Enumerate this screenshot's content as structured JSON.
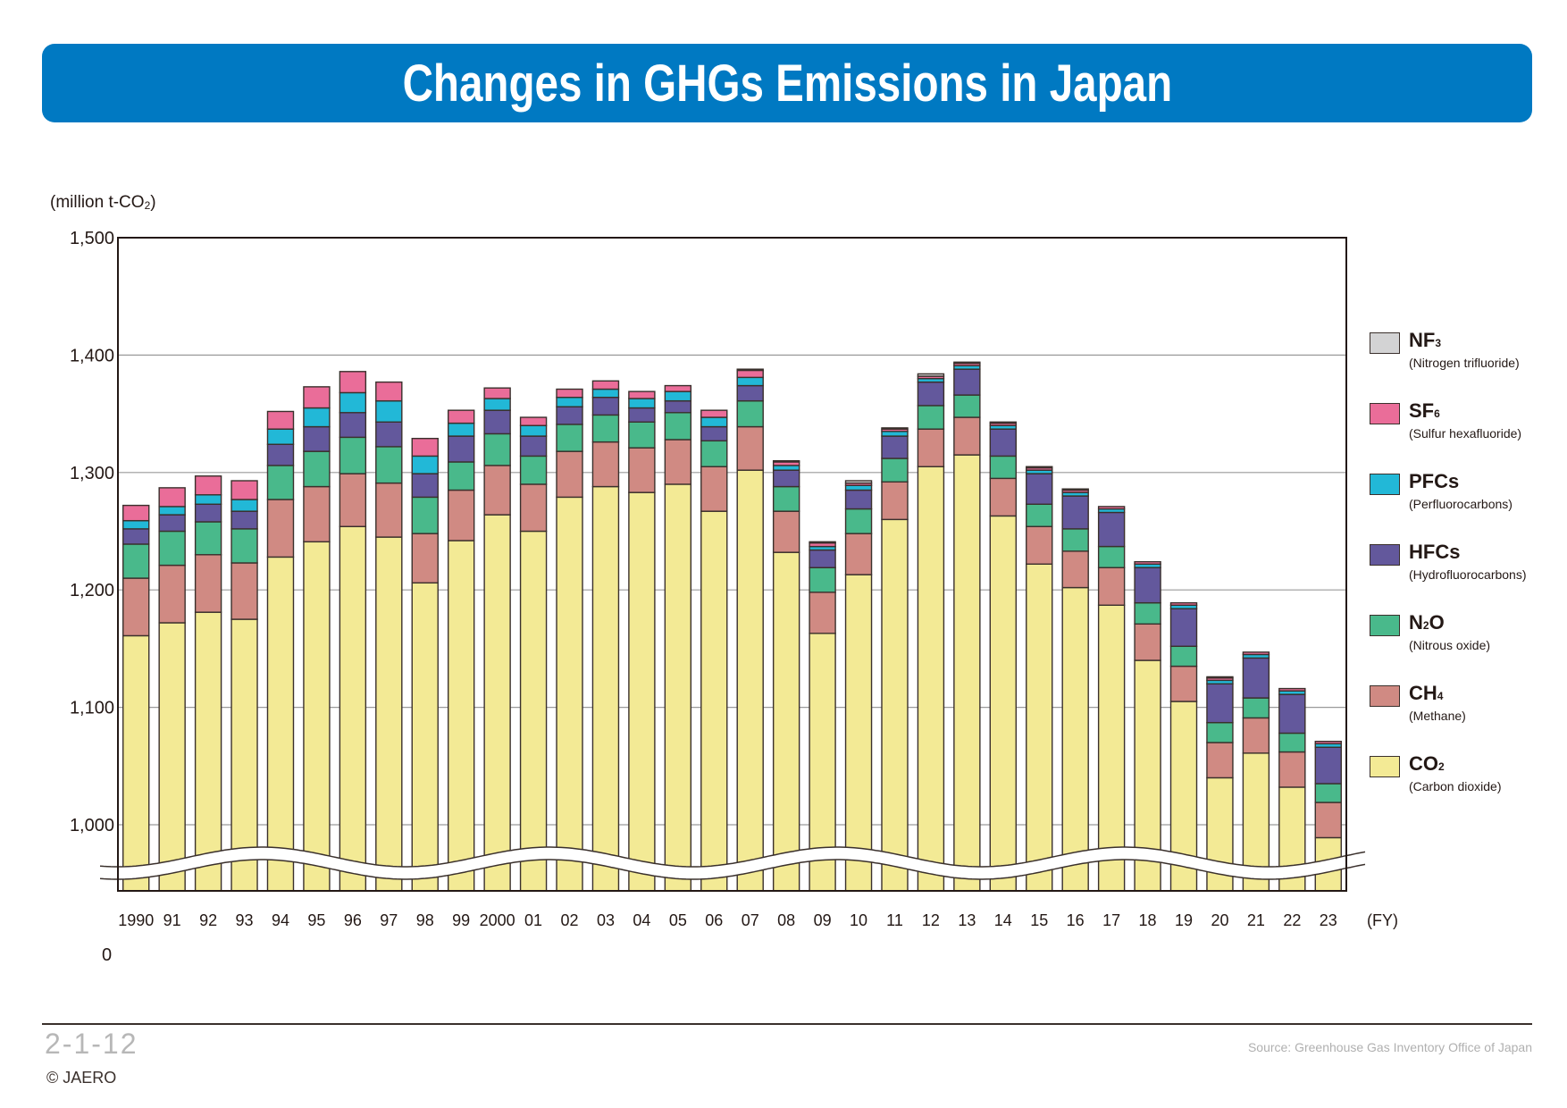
{
  "header": {
    "title": "Changes in GHGs Emissions in Japan"
  },
  "footer": {
    "code": "2-1-12",
    "copyright": "© JAERO",
    "source": "Source: Greenhouse Gas Inventory Office of Japan"
  },
  "chart_data": {
    "type": "bar",
    "stacked": true,
    "title": "Changes in GHGs Emissions in Japan",
    "ylabel": "(million t-CO₂)",
    "xlabel": "(FY)",
    "ylim": [
      950,
      1500
    ],
    "axis_break": true,
    "yticks": [
      1000,
      1100,
      1200,
      1300,
      1400,
      1500
    ],
    "ytick_labels": [
      "1,000",
      "1,100",
      "1,200",
      "1,300",
      "1,400",
      "1,500"
    ],
    "zero_label": "0",
    "grid": true,
    "legend_position": "right",
    "categories": [
      "1990",
      "91",
      "92",
      "93",
      "94",
      "95",
      "96",
      "97",
      "98",
      "99",
      "2000",
      "01",
      "02",
      "03",
      "04",
      "05",
      "06",
      "07",
      "08",
      "09",
      "10",
      "11",
      "12",
      "13",
      "14",
      "15",
      "16",
      "17",
      "18",
      "19",
      "20",
      "21",
      "22",
      "23"
    ],
    "series": [
      {
        "name": "CO2",
        "label": "CO",
        "subscript": "2",
        "description": "(Carbon dioxide)",
        "color": "#f3ea95",
        "values": [
          1161,
          1172,
          1181,
          1175,
          1228,
          1241,
          1254,
          1245,
          1206,
          1242,
          1264,
          1250,
          1279,
          1288,
          1283,
          1290,
          1267,
          1302,
          1232,
          1163,
          1213,
          1260,
          1305,
          1315,
          1263,
          1222,
          1202,
          1187,
          1140,
          1105,
          1040,
          1061,
          1032,
          989
        ]
      },
      {
        "name": "CH4",
        "label": "CH",
        "subscript": "4",
        "description": "(Methane)",
        "color": "#d08a83",
        "values": [
          49,
          49,
          49,
          48,
          49,
          47,
          45,
          46,
          42,
          43,
          42,
          40,
          39,
          38,
          38,
          38,
          38,
          37,
          35,
          35,
          35,
          32,
          32,
          32,
          32,
          32,
          31,
          32,
          31,
          30,
          30,
          30,
          30,
          30
        ]
      },
      {
        "name": "N2O",
        "label": "N",
        "subscript": "2",
        "label_suffix": "O",
        "description": "(Nitrous oxide)",
        "color": "#49b98b",
        "values": [
          29,
          29,
          28,
          29,
          29,
          30,
          31,
          31,
          31,
          24,
          27,
          24,
          23,
          23,
          22,
          23,
          22,
          22,
          21,
          21,
          21,
          20,
          20,
          19,
          19,
          19,
          19,
          18,
          18,
          17,
          17,
          17,
          16,
          16
        ]
      },
      {
        "name": "HFCs",
        "label": "HFCs",
        "subscript": "",
        "description": "(Hydrofluorocarbons)",
        "color": "#63589c",
        "values": [
          13,
          14,
          15,
          15,
          18,
          21,
          21,
          21,
          20,
          22,
          20,
          17,
          15,
          15,
          12,
          10,
          12,
          13,
          14,
          15,
          16,
          19,
          20,
          22,
          23,
          26,
          28,
          29,
          30,
          32,
          33,
          34,
          33,
          31
        ]
      },
      {
        "name": "PFCs",
        "label": "PFCs",
        "subscript": "",
        "description": "(Perfluorocarbons)",
        "color": "#22b8d7",
        "values": [
          7,
          7,
          8,
          10,
          13,
          16,
          17,
          18,
          15,
          11,
          10,
          9,
          8,
          7,
          8,
          8,
          8,
          7,
          4,
          3,
          4,
          4,
          3,
          3,
          3,
          3,
          3,
          3,
          3,
          3,
          3,
          3,
          3,
          3
        ]
      },
      {
        "name": "SF6",
        "label": "SF",
        "subscript": "6",
        "description": "(Sulfur hexafluoride)",
        "color": "#ea6d99",
        "values": [
          13,
          16,
          16,
          16,
          15,
          18,
          18,
          16,
          15,
          11,
          9,
          7,
          7,
          7,
          6,
          5,
          6,
          6,
          3,
          3,
          2,
          2,
          2,
          2,
          2,
          2,
          2,
          2,
          2,
          2,
          2,
          2,
          2,
          2
        ]
      },
      {
        "name": "NF3",
        "label": "NF",
        "subscript": "3",
        "description": "(Nitrogen trifluoride)",
        "color": "#d3d3d4",
        "values": [
          0,
          0,
          0,
          0,
          0,
          0,
          0,
          0,
          0,
          0,
          0,
          0,
          0,
          0,
          0,
          0,
          0,
          1,
          1,
          1,
          2,
          1,
          2,
          1,
          1,
          1,
          1,
          0,
          0,
          0,
          1,
          0,
          0,
          0
        ]
      }
    ]
  }
}
